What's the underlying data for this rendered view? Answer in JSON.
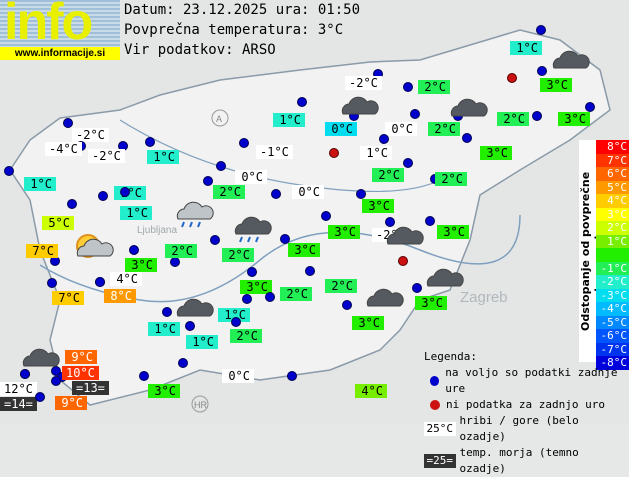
{
  "logo": {
    "text": "info",
    "url": "www.informacije.si"
  },
  "header": {
    "date_line": "Datum: 23.12.2025 ura: 01:50",
    "avg_line": "Povprečna temperatura: 3°C",
    "source_line": "Vir podatkov: ARSO"
  },
  "average_temp": 3,
  "colors": {
    "station_dot": "#0000cc",
    "no_data_dot": "#cc1111",
    "mountain_bg": "#ffffff",
    "sea_bg": "#333333"
  },
  "stations": [
    {
      "t": "1°C"
    },
    {
      "t": "3°C"
    },
    {
      "t": "-2°C",
      "type": "mountain"
    },
    {
      "t": "2°C"
    },
    {
      "t": "1°C"
    },
    {
      "t": "0°C"
    },
    {
      "t": "0°C",
      "type": "mountain"
    },
    {
      "t": "2°C"
    },
    {
      "t": "2°C"
    },
    {
      "t": "3°C"
    },
    {
      "t": "-2°C",
      "type": "mountain"
    },
    {
      "t": "-4°C",
      "type": "mountain"
    },
    {
      "t": "-2°C",
      "type": "mountain"
    },
    {
      "t": "1°C"
    },
    {
      "t": "-1°C",
      "type": "mountain"
    },
    {
      "t": "1°C",
      "type": "mountain"
    },
    {
      "t": "3°C"
    },
    {
      "t": "1°C"
    },
    {
      "t": "1°C"
    },
    {
      "t": "0°C",
      "type": "mountain"
    },
    {
      "t": "2°C"
    },
    {
      "t": "2°C"
    },
    {
      "t": "2°C"
    },
    {
      "t": "0°C",
      "type": "mountain"
    },
    {
      "t": "1°C"
    },
    {
      "t": "3°C"
    },
    {
      "t": "5°C"
    },
    {
      "t": "3°C"
    },
    {
      "t": "-2°C",
      "type": "mountain"
    },
    {
      "t": "3°C"
    },
    {
      "t": "7°C"
    },
    {
      "t": "2°C"
    },
    {
      "t": "3°C"
    },
    {
      "t": "2°C"
    },
    {
      "t": "3°C"
    },
    {
      "t": "4°C",
      "type": "mountain"
    },
    {
      "t": "7°C"
    },
    {
      "t": "8°C"
    },
    {
      "t": "3°C"
    },
    {
      "t": "2°C"
    },
    {
      "t": "2°C"
    },
    {
      "t": "3°C"
    },
    {
      "t": "3°C"
    },
    {
      "t": "1°C"
    },
    {
      "t": "1°C"
    },
    {
      "t": "1°C"
    },
    {
      "t": "2°C"
    },
    {
      "t": "9°C"
    },
    {
      "t": "10°C"
    },
    {
      "t": "=13=",
      "type": "sea"
    },
    {
      "t": "12°C",
      "type": "mountain"
    },
    {
      "t": "=14=",
      "type": "sea"
    },
    {
      "t": "9°C"
    },
    {
      "t": "0°C",
      "type": "mountain"
    },
    {
      "t": "3°C"
    },
    {
      "t": "4°C"
    }
  ],
  "weather_icons": [
    "cloud",
    "cloud",
    "cloud",
    "cloud-rain",
    "cloud-rain-light",
    "sun-cloud",
    "cloud",
    "cloud",
    "cloud",
    "cloud",
    "cloud"
  ],
  "scale": {
    "title": "Odstopanje od povprečne temperature:",
    "items": [
      {
        "label": "8°C",
        "color": "#ff0000"
      },
      {
        "label": "7°C",
        "color": "#ff3300"
      },
      {
        "label": "6°C",
        "color": "#ff6600"
      },
      {
        "label": "5°C",
        "color": "#ff9900"
      },
      {
        "label": "4°C",
        "color": "#ffcc00"
      },
      {
        "label": "3°C",
        "color": "#ffff00"
      },
      {
        "label": "2°C",
        "color": "#ccff00"
      },
      {
        "label": "1°C",
        "color": "#77ee00"
      },
      {
        "label": "",
        "color": "#22ee00"
      },
      {
        "label": "-1°C",
        "color": "#22ee55"
      },
      {
        "label": "-2°C",
        "color": "#22eecc"
      },
      {
        "label": "-3°C",
        "color": "#00ddee"
      },
      {
        "label": "-4°C",
        "color": "#00bbff"
      },
      {
        "label": "-5°C",
        "color": "#0088ff"
      },
      {
        "label": "-6°C",
        "color": "#0055ff"
      },
      {
        "label": "-7°C",
        "color": "#0033ee"
      },
      {
        "label": "-8°C",
        "color": "#0000dd"
      }
    ]
  },
  "legend": {
    "title": "Legenda:",
    "available": "na voljo so podatki zadnje ure",
    "no_data": "ni podatka za zadnjo uro",
    "mountain_sample": "25°C",
    "mountain_text": "hribi / gore (belo ozadje)",
    "sea_sample": "=25=",
    "sea_text": "temp. morja (temno ozadje)"
  },
  "map_labels": {
    "zagreb": "Zagreb",
    "ljubljana": "Ljubljana",
    "hr": "HR",
    "a": "A"
  }
}
